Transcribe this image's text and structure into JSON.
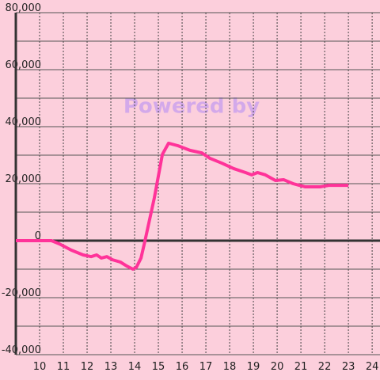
{
  "chart_data": {
    "type": "line",
    "watermark": "Powered by",
    "background": "#fccfdc",
    "xlim": [
      9,
      24.33
    ],
    "xticks": [
      10,
      11,
      12,
      13,
      14,
      15,
      16,
      17,
      18,
      19,
      20,
      21,
      22,
      23,
      24
    ],
    "ylim": [
      -40000,
      80000
    ],
    "yticks": [
      {
        "value": -40000,
        "label": "-40,000"
      },
      {
        "value": -20000,
        "label": "-20,000"
      },
      0,
      {
        "value": 20000,
        "label": "20,000"
      },
      {
        "value": 40000,
        "label": "40,000"
      },
      {
        "value": 60000,
        "label": "60,000"
      },
      {
        "value": 80000,
        "label": "80,000"
      }
    ],
    "y_minor_ticks": [
      -30000,
      -10000,
      10000,
      30000,
      50000,
      70000
    ],
    "grid": true,
    "series": [
      {
        "color": "#ff3399",
        "x": [
          9,
          10.5,
          10.83,
          11.33,
          11.83,
          12.17,
          12.4,
          12.6,
          12.83,
          13.07,
          13.4,
          13.67,
          13.93,
          14.07,
          14.27,
          14.43,
          14.83,
          15.17,
          15.43,
          15.83,
          16.33,
          16.83,
          17.17,
          17.67,
          18.17,
          18.67,
          18.93,
          19.17,
          19.5,
          19.93,
          20.27,
          20.67,
          21.17,
          21.83,
          22.17,
          23
        ],
        "values": [
          0,
          0,
          -1100,
          -3300,
          -5000,
          -5600,
          -5000,
          -6100,
          -5600,
          -6700,
          -7500,
          -8900,
          -10000,
          -9400,
          -6100,
          -300,
          15000,
          30300,
          34200,
          33300,
          31700,
          30800,
          28900,
          27200,
          25300,
          23900,
          23100,
          23900,
          23100,
          21100,
          21400,
          20000,
          18900,
          18900,
          19400,
          19400
        ]
      }
    ]
  }
}
